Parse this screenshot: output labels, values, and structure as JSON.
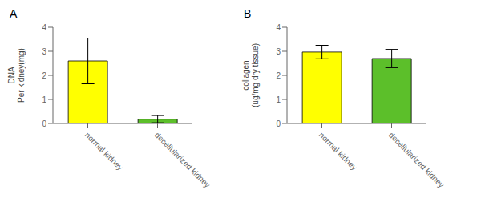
{
  "chart_data": [
    {
      "type": "bar",
      "title": "A",
      "categories": [
        "normal kidney",
        "decellularized kidney"
      ],
      "values": [
        2.6,
        0.18
      ],
      "errors": [
        0.95,
        0.15
      ],
      "colors": [
        "#FFFF00",
        "#5CBF2A"
      ],
      "ylabel": "DNA\nPer kidney(mg)",
      "ylim": [
        0,
        4
      ],
      "yticks": [
        0,
        1,
        2,
        3,
        4
      ]
    },
    {
      "type": "bar",
      "title": "B",
      "categories": [
        "normal kidney",
        "decellularized kidney"
      ],
      "values": [
        2.97,
        2.7
      ],
      "errors": [
        0.28,
        0.38
      ],
      "colors": [
        "#FFFF00",
        "#5CBF2A"
      ],
      "ylabel": "collagen\n(ug/mg dry tissue)",
      "ylim": [
        0,
        4
      ],
      "yticks": [
        0,
        1,
        2,
        3,
        4
      ]
    }
  ]
}
